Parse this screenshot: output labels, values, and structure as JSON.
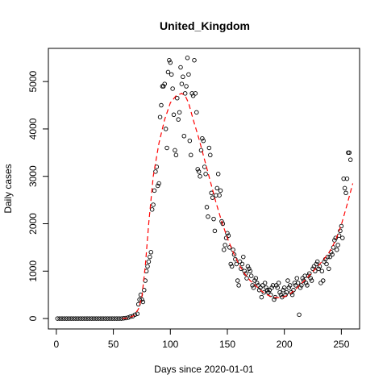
{
  "chart_data": {
    "type": "scatter",
    "title": "United_Kingdom",
    "xlabel": "Days since 2020-01-01",
    "ylabel": "Daily cases",
    "xlim": [
      -7,
      266
    ],
    "ylim": [
      -220,
      5700
    ],
    "xticks": [
      0,
      50,
      100,
      150,
      200,
      250
    ],
    "yticks": [
      0,
      1000,
      2000,
      3000,
      4000,
      5000
    ],
    "grid": false,
    "colors": {
      "points": "#000000",
      "trend": "#ff0000"
    },
    "points": [
      [
        1,
        0
      ],
      [
        3,
        0
      ],
      [
        5,
        0
      ],
      [
        7,
        0
      ],
      [
        9,
        0
      ],
      [
        11,
        0
      ],
      [
        13,
        0
      ],
      [
        15,
        0
      ],
      [
        17,
        0
      ],
      [
        19,
        0
      ],
      [
        21,
        0
      ],
      [
        23,
        0
      ],
      [
        25,
        0
      ],
      [
        27,
        0
      ],
      [
        29,
        0
      ],
      [
        31,
        0
      ],
      [
        33,
        0
      ],
      [
        35,
        0
      ],
      [
        37,
        0
      ],
      [
        39,
        0
      ],
      [
        41,
        0
      ],
      [
        43,
        0
      ],
      [
        45,
        0
      ],
      [
        47,
        0
      ],
      [
        49,
        0
      ],
      [
        51,
        0
      ],
      [
        53,
        0
      ],
      [
        55,
        0
      ],
      [
        57,
        0
      ],
      [
        59,
        5
      ],
      [
        61,
        10
      ],
      [
        63,
        20
      ],
      [
        65,
        40
      ],
      [
        67,
        50
      ],
      [
        69,
        80
      ],
      [
        71,
        100
      ],
      [
        72,
        300
      ],
      [
        73,
        400
      ],
      [
        74,
        500
      ],
      [
        75,
        400
      ],
      [
        76,
        350
      ],
      [
        77,
        600
      ],
      [
        78,
        800
      ],
      [
        79,
        1000
      ],
      [
        80,
        1100
      ],
      [
        81,
        1200
      ],
      [
        82,
        1300
      ],
      [
        83,
        1400
      ],
      [
        84,
        2300
      ],
      [
        85,
        2400
      ],
      [
        86,
        2700
      ],
      [
        87,
        3100
      ],
      [
        88,
        3200
      ],
      [
        89,
        2800
      ],
      [
        90,
        2850
      ],
      [
        91,
        4250
      ],
      [
        92,
        4500
      ],
      [
        93,
        4900
      ],
      [
        94,
        4900
      ],
      [
        95,
        4950
      ],
      [
        96,
        4000
      ],
      [
        97,
        3600
      ],
      [
        98,
        5200
      ],
      [
        99,
        5450
      ],
      [
        100,
        5400
      ],
      [
        101,
        5150
      ],
      [
        102,
        4850
      ],
      [
        103,
        4300
      ],
      [
        104,
        3550
      ],
      [
        105,
        3450
      ],
      [
        106,
        4650
      ],
      [
        107,
        4200
      ],
      [
        108,
        4350
      ],
      [
        109,
        5300
      ],
      [
        110,
        4950
      ],
      [
        111,
        5100
      ],
      [
        112,
        3850
      ],
      [
        113,
        4750
      ],
      [
        114,
        4900
      ],
      [
        115,
        5500
      ],
      [
        116,
        5150
      ],
      [
        117,
        3750
      ],
      [
        118,
        3450
      ],
      [
        119,
        4750
      ],
      [
        120,
        4700
      ],
      [
        121,
        5450
      ],
      [
        122,
        4750
      ],
      [
        123,
        4350
      ],
      [
        124,
        3150
      ],
      [
        125,
        3100
      ],
      [
        126,
        3000
      ],
      [
        127,
        3550
      ],
      [
        128,
        3800
      ],
      [
        129,
        3750
      ],
      [
        130,
        3200
      ],
      [
        131,
        3050
      ],
      [
        132,
        2350
      ],
      [
        133,
        2150
      ],
      [
        134,
        3600
      ],
      [
        135,
        3450
      ],
      [
        136,
        2650
      ],
      [
        137,
        2550
      ],
      [
        138,
        2100
      ],
      [
        139,
        1850
      ],
      [
        140,
        2600
      ],
      [
        141,
        2750
      ],
      [
        142,
        3050
      ],
      [
        143,
        2600
      ],
      [
        144,
        2700
      ],
      [
        145,
        2050
      ],
      [
        146,
        2000
      ],
      [
        147,
        1450
      ],
      [
        148,
        1550
      ],
      [
        149,
        1700
      ],
      [
        150,
        1800
      ],
      [
        151,
        1750
      ],
      [
        152,
        1500
      ],
      [
        153,
        1150
      ],
      [
        154,
        1100
      ],
      [
        155,
        1450
      ],
      [
        156,
        1350
      ],
      [
        157,
        1250
      ],
      [
        158,
        1150
      ],
      [
        159,
        800
      ],
      [
        160,
        700
      ],
      [
        161,
        1200
      ],
      [
        162,
        1050
      ],
      [
        163,
        1150
      ],
      [
        164,
        1300
      ],
      [
        165,
        1000
      ],
      [
        166,
        950
      ],
      [
        167,
        850
      ],
      [
        168,
        1100
      ],
      [
        169,
        1050
      ],
      [
        170,
        1000
      ],
      [
        171,
        900
      ],
      [
        172,
        700
      ],
      [
        173,
        650
      ],
      [
        174,
        800
      ],
      [
        175,
        850
      ],
      [
        176,
        750
      ],
      [
        177,
        700
      ],
      [
        178,
        600
      ],
      [
        179,
        650
      ],
      [
        180,
        450
      ],
      [
        181,
        700
      ],
      [
        182,
        550
      ],
      [
        183,
        750
      ],
      [
        184,
        650
      ],
      [
        185,
        600
      ],
      [
        186,
        550
      ],
      [
        187,
        600
      ],
      [
        188,
        500
      ],
      [
        189,
        650
      ],
      [
        190,
        700
      ],
      [
        191,
        400
      ],
      [
        192,
        450
      ],
      [
        193,
        700
      ],
      [
        194,
        650
      ],
      [
        195,
        750
      ],
      [
        196,
        550
      ],
      [
        197,
        500
      ],
      [
        198,
        450
      ],
      [
        199,
        600
      ],
      [
        200,
        650
      ],
      [
        201,
        500
      ],
      [
        202,
        550
      ],
      [
        203,
        800
      ],
      [
        204,
        650
      ],
      [
        205,
        700
      ],
      [
        206,
        550
      ],
      [
        207,
        500
      ],
      [
        208,
        600
      ],
      [
        209,
        750
      ],
      [
        210,
        700
      ],
      [
        211,
        850
      ],
      [
        212,
        750
      ],
      [
        213,
        80
      ],
      [
        214,
        650
      ],
      [
        215,
        700
      ],
      [
        216,
        850
      ],
      [
        217,
        800
      ],
      [
        218,
        900
      ],
      [
        219,
        750
      ],
      [
        220,
        700
      ],
      [
        221,
        900
      ],
      [
        222,
        950
      ],
      [
        223,
        850
      ],
      [
        224,
        800
      ],
      [
        225,
        1050
      ],
      [
        226,
        1100
      ],
      [
        227,
        1000
      ],
      [
        228,
        1150
      ],
      [
        229,
        1200
      ],
      [
        230,
        1050
      ],
      [
        231,
        1100
      ],
      [
        232,
        750
      ],
      [
        233,
        1000
      ],
      [
        234,
        800
      ],
      [
        235,
        1200
      ],
      [
        236,
        1250
      ],
      [
        237,
        1150
      ],
      [
        238,
        1300
      ],
      [
        239,
        1050
      ],
      [
        240,
        1300
      ],
      [
        241,
        1400
      ],
      [
        242,
        1350
      ],
      [
        243,
        1500
      ],
      [
        244,
        1650
      ],
      [
        245,
        1700
      ],
      [
        246,
        1450
      ],
      [
        247,
        1550
      ],
      [
        248,
        1750
      ],
      [
        249,
        1850
      ],
      [
        250,
        1950
      ],
      [
        251,
        1700
      ],
      [
        252,
        2950
      ],
      [
        253,
        2750
      ],
      [
        254,
        2650
      ],
      [
        255,
        2950
      ],
      [
        256,
        3500
      ],
      [
        257,
        3500
      ],
      [
        258,
        3350
      ]
    ],
    "trend": [
      [
        58,
        0
      ],
      [
        63,
        10
      ],
      [
        68,
        60
      ],
      [
        72,
        200
      ],
      [
        75,
        450
      ],
      [
        78,
        1100
      ],
      [
        81,
        2000
      ],
      [
        85,
        3000
      ],
      [
        90,
        3700
      ],
      [
        95,
        4200
      ],
      [
        100,
        4550
      ],
      [
        105,
        4700
      ],
      [
        110,
        4750
      ],
      [
        113,
        4700
      ],
      [
        116,
        4550
      ],
      [
        120,
        4200
      ],
      [
        125,
        3800
      ],
      [
        130,
        3350
      ],
      [
        135,
        2900
      ],
      [
        140,
        2450
      ],
      [
        145,
        2050
      ],
      [
        150,
        1700
      ],
      [
        155,
        1400
      ],
      [
        160,
        1150
      ],
      [
        165,
        950
      ],
      [
        170,
        800
      ],
      [
        175,
        690
      ],
      [
        180,
        580
      ],
      [
        185,
        500
      ],
      [
        190,
        450
      ],
      [
        195,
        440
      ],
      [
        200,
        460
      ],
      [
        205,
        520
      ],
      [
        210,
        620
      ],
      [
        215,
        740
      ],
      [
        220,
        860
      ],
      [
        225,
        990
      ],
      [
        230,
        1120
      ],
      [
        235,
        1260
      ],
      [
        240,
        1420
      ],
      [
        245,
        1650
      ],
      [
        250,
        1980
      ],
      [
        255,
        2400
      ],
      [
        260,
        2850
      ]
    ]
  }
}
